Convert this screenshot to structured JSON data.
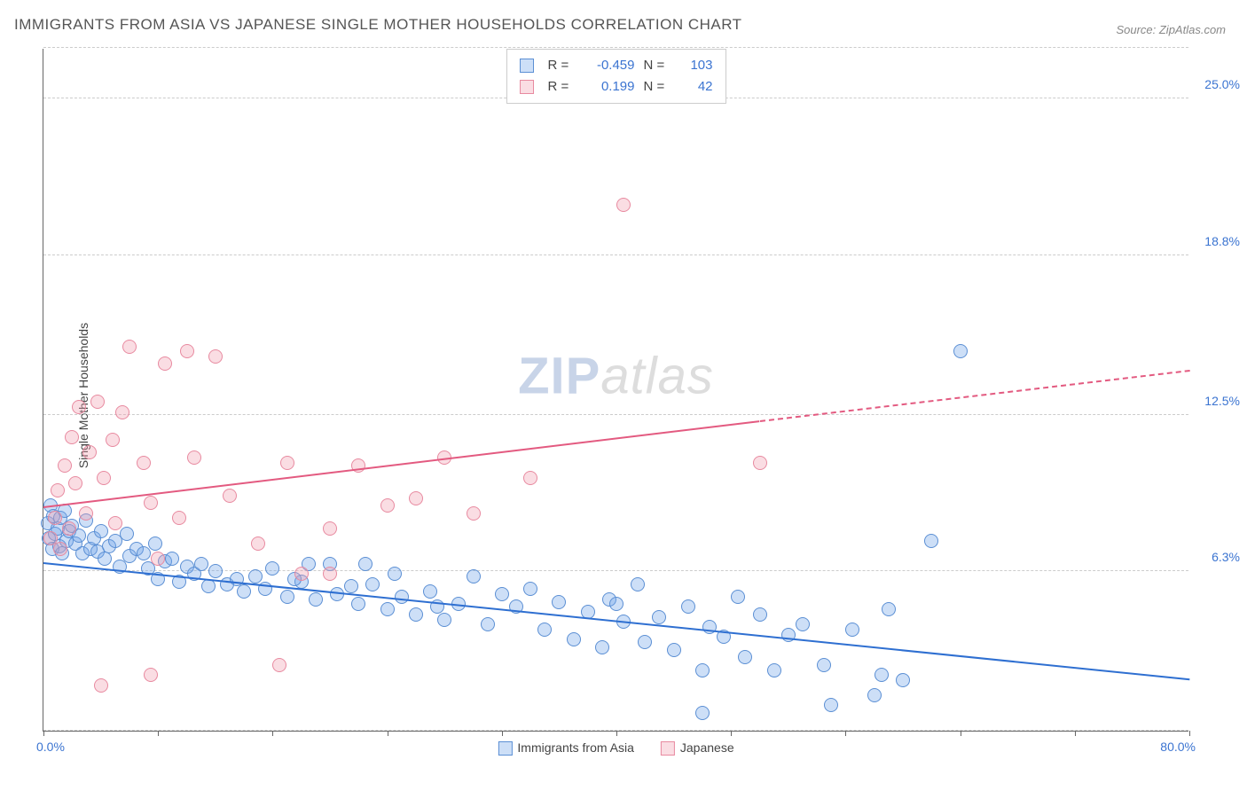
{
  "title": "IMMIGRANTS FROM ASIA VS JAPANESE SINGLE MOTHER HOUSEHOLDS CORRELATION CHART",
  "source": "Source: ZipAtlas.com",
  "ylabel": "Single Mother Households",
  "chart": {
    "type": "scatter",
    "xlim": [
      0,
      80
    ],
    "ylim": [
      0,
      27
    ],
    "xmin_label": "0.0%",
    "xmax_label": "80.0%",
    "ytick_labels": [
      "6.3%",
      "12.5%",
      "18.8%",
      "25.0%"
    ],
    "ytick_vals": [
      6.3,
      12.5,
      18.8,
      25.0
    ],
    "grid_vals": [
      0,
      6.3,
      12.5,
      18.8,
      25.0,
      27
    ],
    "xtick_vals": [
      0,
      8,
      16,
      24,
      32,
      40,
      48,
      56,
      64,
      72,
      80
    ],
    "background_color": "#ffffff",
    "grid_color": "#cccccc",
    "axis_color": "#666666",
    "point_radius": 8,
    "point_opacity": 0.55,
    "accent_color": "#3b74d1"
  },
  "series": [
    {
      "name": "Immigrants from Asia",
      "color": "#6fa3e8",
      "fill": "rgba(111,163,232,0.35)",
      "border": "#5b8fd4",
      "R": "-0.459",
      "N": "103",
      "trend": {
        "x0": 0,
        "y0": 6.6,
        "x1": 80,
        "y1": 2.0,
        "color": "#2e6fd1",
        "width": 2,
        "dash": false
      },
      "points": [
        [
          0.3,
          8.2
        ],
        [
          0.4,
          7.6
        ],
        [
          0.5,
          8.9
        ],
        [
          0.6,
          7.2
        ],
        [
          0.7,
          8.5
        ],
        [
          0.8,
          7.8
        ],
        [
          1.0,
          8.0
        ],
        [
          1.1,
          7.3
        ],
        [
          1.2,
          8.4
        ],
        [
          1.3,
          7.0
        ],
        [
          1.5,
          8.7
        ],
        [
          1.6,
          7.5
        ],
        [
          1.8,
          7.9
        ],
        [
          2.0,
          8.1
        ],
        [
          2.2,
          7.4
        ],
        [
          2.5,
          7.7
        ],
        [
          2.7,
          7.0
        ],
        [
          3.0,
          8.3
        ],
        [
          3.3,
          7.2
        ],
        [
          3.5,
          7.6
        ],
        [
          3.8,
          7.1
        ],
        [
          4.0,
          7.9
        ],
        [
          4.3,
          6.8
        ],
        [
          4.6,
          7.3
        ],
        [
          5.0,
          7.5
        ],
        [
          5.3,
          6.5
        ],
        [
          5.8,
          7.8
        ],
        [
          6.0,
          6.9
        ],
        [
          6.5,
          7.2
        ],
        [
          7.0,
          7.0
        ],
        [
          7.3,
          6.4
        ],
        [
          7.8,
          7.4
        ],
        [
          8.0,
          6.0
        ],
        [
          8.5,
          6.7
        ],
        [
          9.0,
          6.8
        ],
        [
          9.5,
          5.9
        ],
        [
          10.0,
          6.5
        ],
        [
          10.5,
          6.2
        ],
        [
          11.0,
          6.6
        ],
        [
          11.5,
          5.7
        ],
        [
          12.0,
          6.3
        ],
        [
          12.8,
          5.8
        ],
        [
          13.5,
          6.0
        ],
        [
          14.0,
          5.5
        ],
        [
          14.8,
          6.1
        ],
        [
          15.5,
          5.6
        ],
        [
          16.0,
          6.4
        ],
        [
          17.0,
          5.3
        ],
        [
          18.0,
          5.9
        ],
        [
          18.5,
          6.6
        ],
        [
          19.0,
          5.2
        ],
        [
          20.0,
          6.6
        ],
        [
          20.5,
          5.4
        ],
        [
          21.5,
          5.7
        ],
        [
          22.0,
          5.0
        ],
        [
          23.0,
          5.8
        ],
        [
          24.0,
          4.8
        ],
        [
          24.5,
          6.2
        ],
        [
          25.0,
          5.3
        ],
        [
          26.0,
          4.6
        ],
        [
          27.0,
          5.5
        ],
        [
          28.0,
          4.4
        ],
        [
          29.0,
          5.0
        ],
        [
          30.0,
          6.1
        ],
        [
          31.0,
          4.2
        ],
        [
          32.0,
          5.4
        ],
        [
          33.0,
          4.9
        ],
        [
          34.0,
          5.6
        ],
        [
          35.0,
          4.0
        ],
        [
          36.0,
          5.1
        ],
        [
          37.0,
          3.6
        ],
        [
          38.0,
          4.7
        ],
        [
          39.0,
          3.3
        ],
        [
          39.5,
          5.2
        ],
        [
          40.5,
          4.3
        ],
        [
          41.5,
          5.8
        ],
        [
          42.0,
          3.5
        ],
        [
          43.0,
          4.5
        ],
        [
          44.0,
          3.2
        ],
        [
          45.0,
          4.9
        ],
        [
          46.0,
          2.4
        ],
        [
          46.5,
          4.1
        ],
        [
          47.5,
          3.7
        ],
        [
          48.5,
          5.3
        ],
        [
          49.0,
          2.9
        ],
        [
          50.0,
          4.6
        ],
        [
          51.0,
          2.4
        ],
        [
          52.0,
          3.8
        ],
        [
          53.0,
          4.2
        ],
        [
          54.5,
          2.6
        ],
        [
          55.0,
          1.0
        ],
        [
          56.5,
          4.0
        ],
        [
          58.0,
          1.4
        ],
        [
          58.5,
          2.2
        ],
        [
          59.0,
          4.8
        ],
        [
          60.0,
          2.0
        ],
        [
          62.0,
          7.5
        ],
        [
          64.0,
          15.0
        ],
        [
          46.0,
          0.7
        ],
        [
          40.0,
          5.0
        ],
        [
          17.5,
          6.0
        ],
        [
          22.5,
          6.6
        ],
        [
          27.5,
          4.9
        ]
      ]
    },
    {
      "name": "Japanese",
      "color": "#f19db0",
      "fill": "rgba(241,157,176,0.35)",
      "border": "#e88aa0",
      "R": "0.199",
      "N": "42",
      "trend_solid": {
        "x0": 0,
        "y0": 8.8,
        "x1": 50,
        "y1": 12.2,
        "color": "#e35a80",
        "width": 2,
        "dash": false
      },
      "trend_dash": {
        "x0": 50,
        "y0": 12.2,
        "x1": 80,
        "y1": 14.2,
        "color": "#e35a80",
        "width": 2,
        "dash": true
      },
      "points": [
        [
          0.5,
          7.6
        ],
        [
          0.8,
          8.4
        ],
        [
          1.0,
          9.5
        ],
        [
          1.2,
          7.2
        ],
        [
          1.5,
          10.5
        ],
        [
          1.8,
          8.0
        ],
        [
          2.0,
          11.6
        ],
        [
          2.2,
          9.8
        ],
        [
          2.5,
          12.8
        ],
        [
          3.0,
          8.6
        ],
        [
          3.2,
          11.0
        ],
        [
          3.8,
          13.0
        ],
        [
          4.2,
          10.0
        ],
        [
          4.8,
          11.5
        ],
        [
          5.0,
          8.2
        ],
        [
          5.5,
          12.6
        ],
        [
          6.0,
          15.2
        ],
        [
          7.0,
          10.6
        ],
        [
          7.5,
          9.0
        ],
        [
          8.0,
          6.8
        ],
        [
          8.5,
          14.5
        ],
        [
          9.5,
          8.4
        ],
        [
          10.0,
          15.0
        ],
        [
          10.5,
          10.8
        ],
        [
          12.0,
          14.8
        ],
        [
          13.0,
          9.3
        ],
        [
          15.0,
          7.4
        ],
        [
          17.0,
          10.6
        ],
        [
          18.0,
          6.2
        ],
        [
          20.0,
          8.0
        ],
        [
          22.0,
          10.5
        ],
        [
          24.0,
          8.9
        ],
        [
          26.0,
          9.2
        ],
        [
          28.0,
          10.8
        ],
        [
          30.0,
          8.6
        ],
        [
          34.0,
          10.0
        ],
        [
          40.5,
          20.8
        ],
        [
          50.0,
          10.6
        ],
        [
          7.5,
          2.2
        ],
        [
          16.5,
          2.6
        ],
        [
          4.0,
          1.8
        ],
        [
          20.0,
          6.2
        ]
      ]
    }
  ],
  "watermark": {
    "left": "ZIP",
    "right": "atlas"
  }
}
